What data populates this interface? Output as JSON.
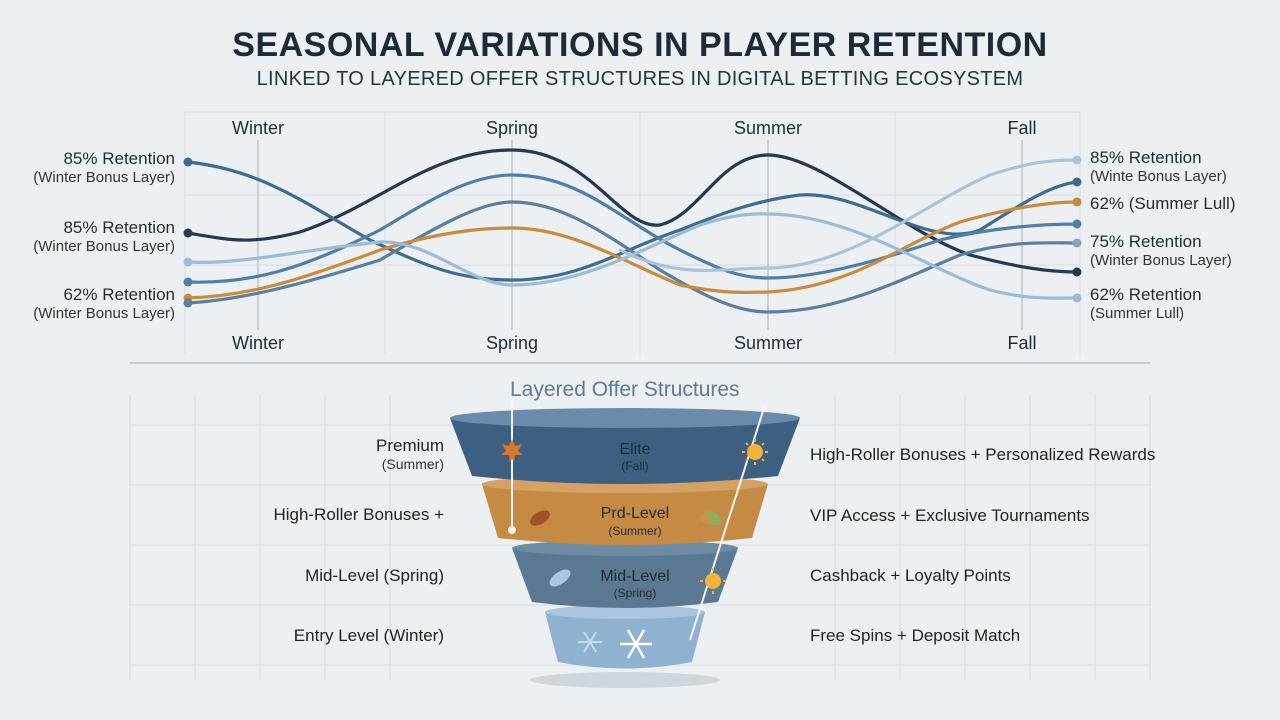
{
  "title": "SEASONAL VARIATIONS IN PLAYER RETENTION",
  "subtitle": "LINKED TO LAYERED OFFER STRUCTURES IN DIGITAL BETTING ECOSYSTEM",
  "seasons_top": [
    "Winter",
    "Spring",
    "Summer",
    "Fall"
  ],
  "seasons_bottom": [
    "Winter",
    "Spring",
    "Summer",
    "Fall"
  ],
  "left_labels": [
    {
      "main": "85% Retention",
      "sub": "(Winter Bonus Layer)"
    },
    {
      "main": "85% Retention",
      "sub": "(Winter Bonus Layer)"
    },
    {
      "main": "62% Retention",
      "sub": "(Winter Bonus Layer)"
    }
  ],
  "right_labels": [
    {
      "main": "85% Retention",
      "sub": "(Winte Bonus Layer)"
    },
    {
      "main": "62% (Summer Lull)",
      "sub": ""
    },
    {
      "main": "75% Retention",
      "sub": "(Winter Bonus Layer)"
    },
    {
      "main": "62% Retention",
      "sub": "(Summer Lull)"
    }
  ],
  "colors": {
    "navy": "#233a52",
    "steel": "#3f6b8d",
    "blue": "#4f7fa6",
    "light_blue": "#9bbcd6",
    "gold": "#c98b3e",
    "elite": "#3d5f82",
    "pro": "#c58b45",
    "mid": "#5a7891",
    "entry": "#8fb2d0"
  },
  "funnel": {
    "title": "Layered Offer Structures",
    "tiers": [
      {
        "name": "Elite",
        "season": "(Fall)",
        "left_main": "Premium",
        "left_sub": "(Summer)",
        "right": "High-Roller Bonuses + Personalized Rewards",
        "left_icon": "maple-leaf-icon",
        "right_icon": "sun-icon"
      },
      {
        "name": "Prd-Level",
        "season": "(Summer)",
        "left_main": "High-Roller Bonuses +",
        "left_sub": "",
        "right": "VIP Access + Exclusive Tournaments",
        "left_icon": "leaf-icon",
        "right_icon": "leaf-icon"
      },
      {
        "name": "Mid-Level",
        "season": "(Spring)",
        "left_main": "Mid-Level (Spring)",
        "left_sub": "",
        "right": "Cashback + Loyalty Points",
        "left_icon": "leaf-icon",
        "right_icon": "sun-icon"
      },
      {
        "name": "",
        "season": "",
        "left_main": "Entry Level (Winter)",
        "left_sub": "",
        "right": "Free Spins + Deposit Match",
        "left_icon": "snowflake-icon",
        "right_icon": "snowflake-icon"
      }
    ]
  }
}
